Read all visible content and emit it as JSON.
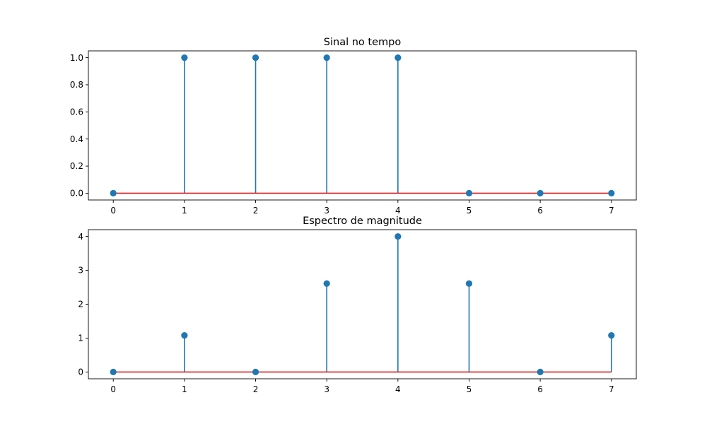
{
  "chart_data": [
    {
      "type": "stem",
      "title": "Sinal no tempo",
      "xlabel": "",
      "ylabel": "",
      "x": [
        0,
        1,
        2,
        3,
        4,
        5,
        6,
        7
      ],
      "values": [
        0,
        1,
        1,
        1,
        1,
        0,
        0,
        0
      ],
      "xlim": [
        -0.35,
        7.35
      ],
      "ylim": [
        -0.05,
        1.05
      ],
      "x_ticks": [
        0,
        1,
        2,
        3,
        4,
        5,
        6,
        7
      ],
      "x_tick_labels": [
        "0",
        "1",
        "2",
        "3",
        "4",
        "5",
        "6",
        "7"
      ],
      "y_ticks": [
        0,
        0.2,
        0.4,
        0.6,
        0.8,
        1.0
      ],
      "y_tick_labels": [
        "0.0",
        "0.2",
        "0.4",
        "0.6",
        "0.8",
        "1.0"
      ],
      "baseline": 0,
      "grid": false,
      "colors": {
        "stem": "#1f77b4",
        "marker": "#1f77b4",
        "baseline": "#d62728"
      }
    },
    {
      "type": "stem",
      "title": "Espectro de magnitude",
      "xlabel": "",
      "ylabel": "",
      "x": [
        0,
        1,
        2,
        3,
        4,
        5,
        6,
        7
      ],
      "values": [
        0,
        1.08,
        0,
        2.61,
        4.0,
        2.61,
        0,
        1.08
      ],
      "xlim": [
        -0.35,
        7.35
      ],
      "ylim": [
        -0.2,
        4.2
      ],
      "x_ticks": [
        0,
        1,
        2,
        3,
        4,
        5,
        6,
        7
      ],
      "x_tick_labels": [
        "0",
        "1",
        "2",
        "3",
        "4",
        "5",
        "6",
        "7"
      ],
      "y_ticks": [
        0,
        1,
        2,
        3,
        4
      ],
      "y_tick_labels": [
        "0",
        "1",
        "2",
        "3",
        "4"
      ],
      "baseline": 0,
      "grid": false,
      "colors": {
        "stem": "#1f77b4",
        "marker": "#1f77b4",
        "baseline": "#d62728"
      }
    }
  ]
}
